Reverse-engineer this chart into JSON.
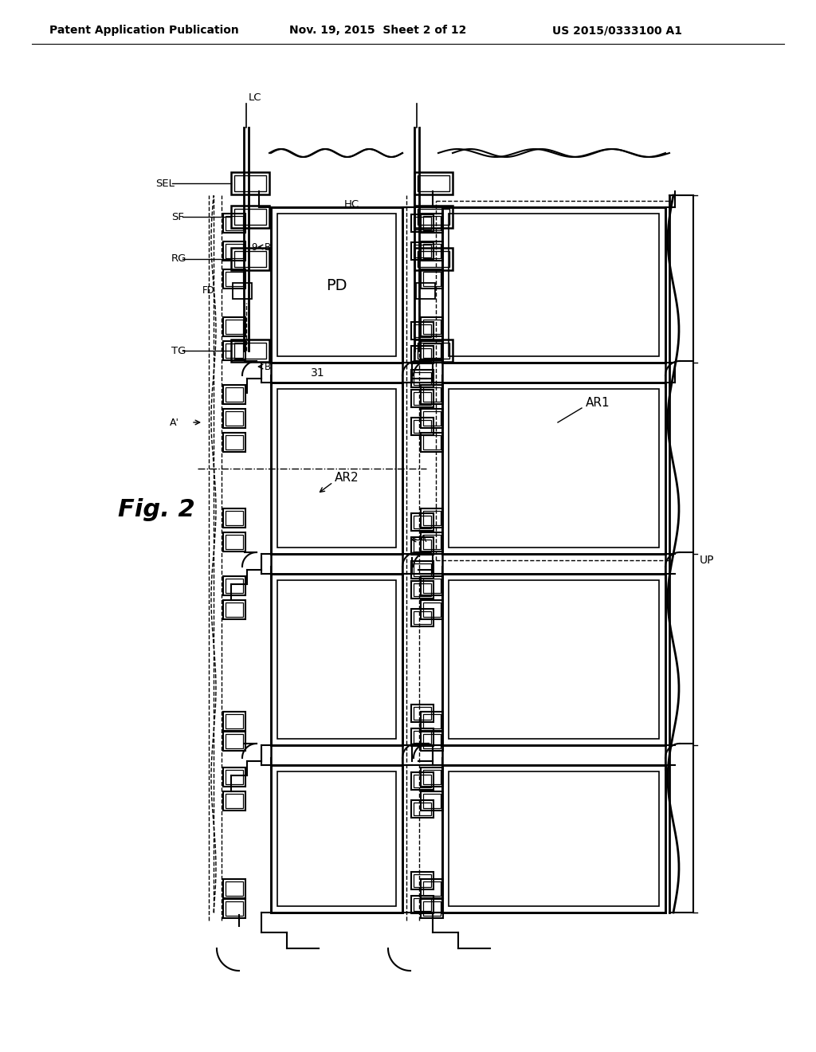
{
  "bg": "#ffffff",
  "lc": "#000000",
  "header_left": "Patent Application Publication",
  "header_mid": "Nov. 19, 2015  Sheet 2 of 12",
  "header_right": "US 2015/0333100 A1",
  "fig_label": "Fig. 2"
}
